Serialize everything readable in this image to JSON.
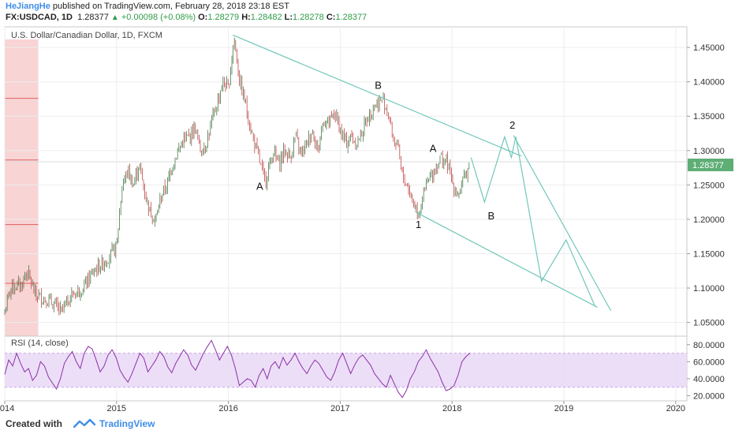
{
  "header": {
    "author": "HeJiangHe",
    "published_text": "published on TradingView.com, February 28, 2018 23:18 EST",
    "symbol": "FX:USDCAD, 1D",
    "last": "1.28377",
    "change": "+0.00098 (+0.08%)",
    "o_label": "O:",
    "o_value": "1.28279",
    "h_label": "H:",
    "h_value": "1.28482",
    "l_label": "L:",
    "l_value": "1.28278",
    "c_label": "C:",
    "c_value": "1.28377"
  },
  "footer": {
    "created_with": "Created with",
    "brand": "TradingView"
  },
  "colors": {
    "candle_up": "#4a7a4a",
    "candle_down": "#c04a4a",
    "trendline": "#70c7ba",
    "rsi_line": "#8b32a8",
    "rsi_band": "#e9d8f6",
    "price_tag": "#5fae76",
    "shade": "#f6c6c6"
  },
  "chart_data": [
    {
      "type": "candlestick",
      "title": "U.S. Dollar/Canadian Dollar, 1D, FXCM",
      "x_ticks": [
        "2014",
        "2015",
        "2016",
        "2017",
        "2018",
        "2019",
        "2020"
      ],
      "y_ticks": [
        "1.45000",
        "1.40000",
        "1.35000",
        "1.30000",
        "1.25000",
        "1.20000",
        "1.15000",
        "1.10000",
        "1.05000"
      ],
      "ylim": [
        1.03,
        1.48
      ],
      "xlim": [
        2014.0,
        2020.1
      ],
      "last_price_label": "1.28377",
      "last_price": 1.28377,
      "price_path": [
        [
          2014.0,
          1.065
        ],
        [
          2014.05,
          1.1
        ],
        [
          2014.15,
          1.105
        ],
        [
          2014.2,
          1.125
        ],
        [
          2014.27,
          1.09
        ],
        [
          2014.35,
          1.085
        ],
        [
          2014.45,
          1.075
        ],
        [
          2014.5,
          1.065
        ],
        [
          2014.6,
          1.09
        ],
        [
          2014.7,
          1.1
        ],
        [
          2014.8,
          1.125
        ],
        [
          2014.9,
          1.14
        ],
        [
          2015.0,
          1.16
        ],
        [
          2015.05,
          1.25
        ],
        [
          2015.1,
          1.27
        ],
        [
          2015.15,
          1.25
        ],
        [
          2015.2,
          1.28
        ],
        [
          2015.25,
          1.24
        ],
        [
          2015.3,
          1.21
        ],
        [
          2015.35,
          1.2
        ],
        [
          2015.4,
          1.235
        ],
        [
          2015.45,
          1.25
        ],
        [
          2015.5,
          1.28
        ],
        [
          2015.55,
          1.3
        ],
        [
          2015.6,
          1.315
        ],
        [
          2015.65,
          1.32
        ],
        [
          2015.7,
          1.335
        ],
        [
          2015.75,
          1.3
        ],
        [
          2015.8,
          1.31
        ],
        [
          2015.85,
          1.34
        ],
        [
          2015.9,
          1.37
        ],
        [
          2015.95,
          1.4
        ],
        [
          2016.0,
          1.39
        ],
        [
          2016.05,
          1.465
        ],
        [
          2016.1,
          1.4
        ],
        [
          2016.15,
          1.37
        ],
        [
          2016.2,
          1.33
        ],
        [
          2016.27,
          1.29
        ],
        [
          2016.3,
          1.27
        ],
        [
          2016.33,
          1.255
        ],
        [
          2016.4,
          1.3
        ],
        [
          2016.45,
          1.28
        ],
        [
          2016.5,
          1.3
        ],
        [
          2016.55,
          1.29
        ],
        [
          2016.6,
          1.32
        ],
        [
          2016.65,
          1.295
        ],
        [
          2016.7,
          1.31
        ],
        [
          2016.75,
          1.33
        ],
        [
          2016.8,
          1.3
        ],
        [
          2016.85,
          1.345
        ],
        [
          2016.9,
          1.34
        ],
        [
          2016.95,
          1.355
        ],
        [
          2017.0,
          1.33
        ],
        [
          2017.05,
          1.31
        ],
        [
          2017.1,
          1.32
        ],
        [
          2017.15,
          1.31
        ],
        [
          2017.2,
          1.33
        ],
        [
          2017.25,
          1.35
        ],
        [
          2017.3,
          1.365
        ],
        [
          2017.35,
          1.37
        ],
        [
          2017.38,
          1.375
        ],
        [
          2017.42,
          1.36
        ],
        [
          2017.47,
          1.32
        ],
        [
          2017.52,
          1.3
        ],
        [
          2017.55,
          1.265
        ],
        [
          2017.6,
          1.25
        ],
        [
          2017.65,
          1.225
        ],
        [
          2017.7,
          1.21
        ],
        [
          2017.75,
          1.24
        ],
        [
          2017.8,
          1.26
        ],
        [
          2017.85,
          1.275
        ],
        [
          2017.9,
          1.29
        ],
        [
          2017.95,
          1.285
        ],
        [
          2018.0,
          1.255
        ],
        [
          2018.05,
          1.235
        ],
        [
          2018.1,
          1.255
        ],
        [
          2018.16,
          1.284
        ]
      ],
      "wave_labels": [
        {
          "label": "A",
          "x": 2016.28,
          "y": 1.243
        },
        {
          "label": "B",
          "x": 2017.34,
          "y": 1.39
        },
        {
          "label": "1",
          "x": 2017.7,
          "y": 1.187
        },
        {
          "label": "A",
          "x": 2017.83,
          "y": 1.298
        },
        {
          "label": "B",
          "x": 2018.35,
          "y": 1.2
        },
        {
          "label": "2",
          "x": 2018.54,
          "y": 1.332
        }
      ],
      "trendlines": [
        {
          "points": [
            [
              2016.04,
              1.468
            ],
            [
              2018.62,
              1.292
            ]
          ]
        },
        {
          "points": [
            [
              2017.68,
              1.21
            ],
            [
              2019.3,
              1.072
            ]
          ]
        },
        {
          "points": [
            [
              2018.55,
              1.322
            ],
            [
              2019.42,
              1.067
            ]
          ]
        }
      ],
      "projection": [
        [
          2018.17,
          1.29
        ],
        [
          2018.29,
          1.225
        ],
        [
          2018.47,
          1.32
        ],
        [
          2018.53,
          1.29
        ],
        [
          2018.57,
          1.32
        ],
        [
          2018.8,
          1.11
        ],
        [
          2019.02,
          1.17
        ],
        [
          2019.28,
          1.073
        ]
      ],
      "shaded_region": [
        2014.0,
        2014.3
      ]
    },
    {
      "type": "line",
      "title": "RSI (14, close)",
      "y_ticks": [
        "80.0000",
        "60.0000",
        "40.0000",
        "20.0000"
      ],
      "ylim": [
        14,
        90
      ],
      "band": [
        30,
        70
      ],
      "series": [
        {
          "values": [
            45,
            62,
            55,
            70,
            58,
            48,
            52,
            38,
            44,
            60,
            55,
            42,
            35,
            28,
            40,
            58,
            66,
            72,
            60,
            52,
            70,
            78,
            75,
            62,
            48,
            55,
            68,
            74,
            65,
            50,
            42,
            36,
            46,
            58,
            70,
            64,
            48,
            55,
            62,
            72,
            66,
            54,
            47,
            58,
            66,
            74,
            68,
            56,
            50,
            60,
            70,
            78,
            85,
            74,
            62,
            70,
            78,
            68,
            52,
            32,
            36,
            40,
            38,
            30,
            44,
            52,
            40,
            55,
            60,
            52,
            65,
            56,
            62,
            70,
            60,
            52,
            46,
            55,
            62,
            58,
            50,
            42,
            38,
            48,
            62,
            70,
            58,
            46,
            56,
            64,
            68,
            62,
            56,
            46,
            40,
            34,
            30,
            44,
            34,
            24,
            18,
            26,
            40,
            48,
            60,
            66,
            74,
            64,
            56,
            48,
            36,
            26,
            28,
            32,
            44,
            60,
            66,
            70
          ]
        }
      ]
    }
  ]
}
